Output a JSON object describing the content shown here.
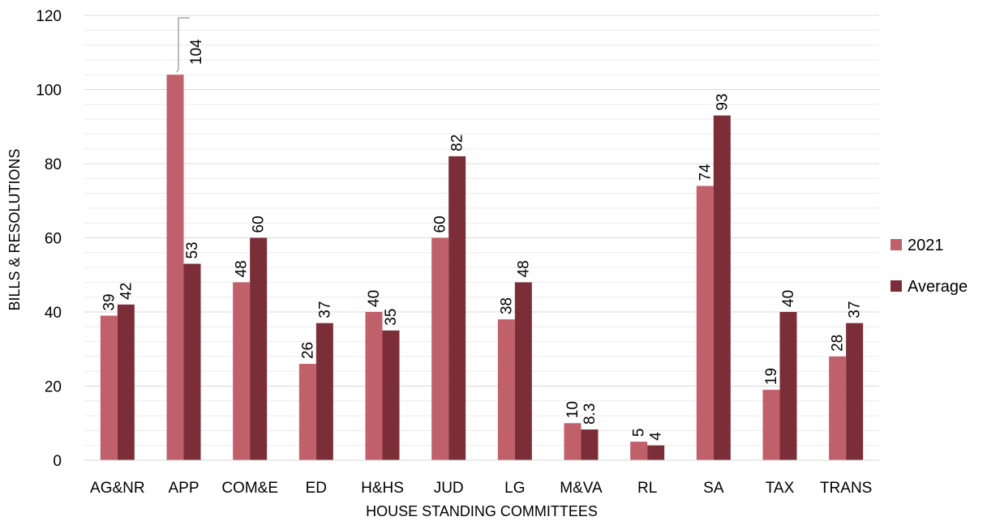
{
  "chart_data": {
    "type": "bar",
    "title": "",
    "xlabel": "HOUSE STANDING COMMITTEES",
    "ylabel": "BILLS & RESOLUTIONS",
    "ylim": [
      0,
      120
    ],
    "yticks": [
      0,
      20,
      40,
      60,
      80,
      100,
      120
    ],
    "grid": true,
    "legend_position": "right",
    "categories": [
      "AG&NR",
      "APP",
      "COM&E",
      "ED",
      "H&HS",
      "JUD",
      "LG",
      "M&VA",
      "RL",
      "SA",
      "TAX",
      "TRANS"
    ],
    "series": [
      {
        "name": "2021",
        "color": "#c0606a",
        "values": [
          39,
          104,
          48,
          26,
          40,
          60,
          38,
          10,
          5,
          74,
          19,
          28
        ],
        "labels": [
          "39",
          "104",
          "48",
          "26",
          "40",
          "60",
          "38",
          "10",
          "5",
          "74",
          "19",
          "28"
        ]
      },
      {
        "name": "Average",
        "color": "#7b2e38",
        "values": [
          42,
          53,
          60,
          37,
          35,
          82,
          48,
          8.3,
          4,
          93,
          40,
          37
        ],
        "labels": [
          "42",
          "53",
          "60",
          "37",
          "35",
          "82",
          "48",
          "8.3",
          "4",
          "93",
          "40",
          "37"
        ]
      }
    ]
  }
}
